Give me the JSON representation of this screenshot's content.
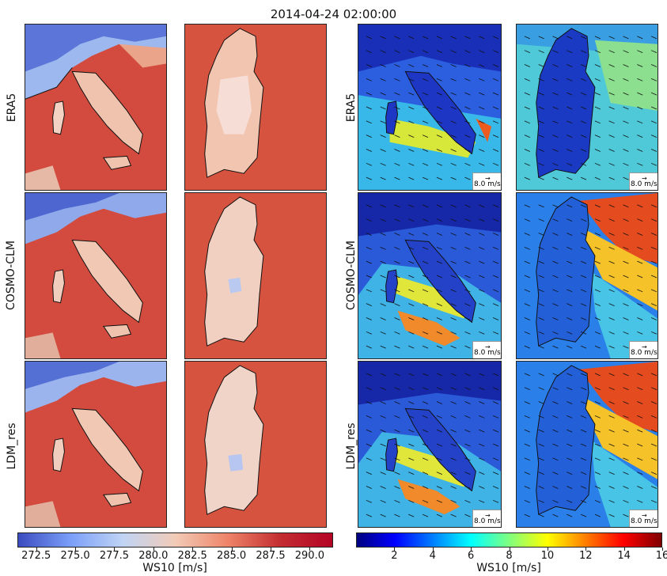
{
  "title": "2014-04-24 02:00:00",
  "rows": [
    {
      "label": "ERA5"
    },
    {
      "label": "COSMO-CLM"
    },
    {
      "label": "LDM_res"
    }
  ],
  "scale_label": "8.0 m/s",
  "colorbars": {
    "left": {
      "label": "WS10 [m/s]",
      "ticks": [
        "272.5",
        "275.0",
        "277.5",
        "280.0",
        "282.5",
        "285.0",
        "287.5",
        "290.0"
      ],
      "range": [
        271.3,
        291.5
      ],
      "colormap": "coolwarm",
      "colors": [
        "#3b4cc0",
        "#7b9ff9",
        "#c0d4f5",
        "#f2cbb7",
        "#ee8468",
        "#c32e31",
        "#b40426"
      ]
    },
    "right": {
      "label": "WS10 [m/s]",
      "ticks": [
        "2",
        "4",
        "6",
        "8",
        "10",
        "12",
        "14",
        "16"
      ],
      "range": [
        0,
        16
      ],
      "colormap": "jet",
      "colors": [
        "#00007f",
        "#0000ff",
        "#007fff",
        "#00ffff",
        "#7fff7f",
        "#ffff00",
        "#ff7f00",
        "#ff0000",
        "#7f0000"
      ]
    }
  }
}
